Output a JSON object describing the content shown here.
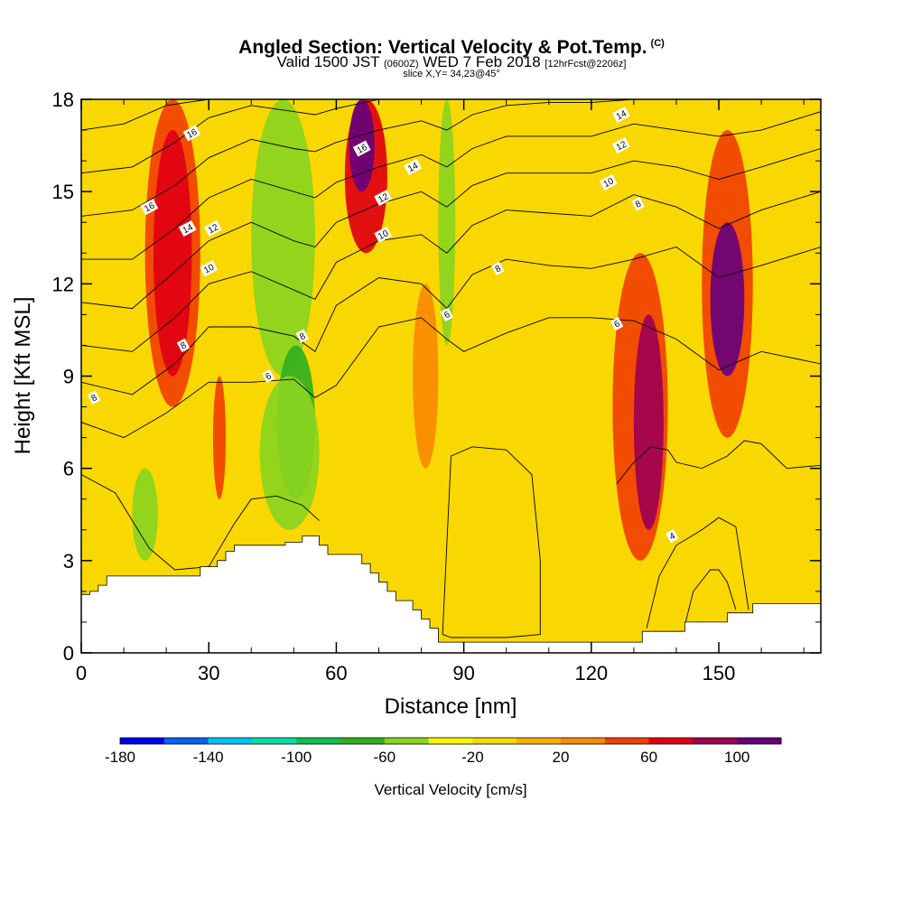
{
  "header": {
    "title": "Angled Section: Vertical Velocity & Pot.Temp.",
    "title_tag": "(C)",
    "valid_prefix": "Valid 1500 JST",
    "valid_z": "(0600Z)",
    "valid_day": "WED 7 Feb 2018",
    "valid_fcst": "[12hrFcst@2206z]",
    "slice": "slice X,Y= 34,23@45°"
  },
  "chart_data": {
    "type": "heatmap",
    "xlabel": "Distance [nm]",
    "ylabel": "Height [Kft MSL]",
    "xlim": [
      0,
      174
    ],
    "ylim": [
      0,
      18
    ],
    "x_ticks": [
      0,
      30,
      60,
      90,
      120,
      150
    ],
    "y_ticks": [
      0,
      3,
      6,
      9,
      12,
      15,
      18
    ],
    "x_tick_labels": [
      "0",
      "30",
      "60",
      "90",
      "120",
      "150"
    ],
    "y_tick_labels": [
      "0",
      "3",
      "6",
      "9",
      "12",
      "15",
      "18"
    ],
    "colorbar": {
      "label": "Vertical Velocity [cm/s]",
      "min": -180,
      "max": 120,
      "step": 20,
      "tick_values": [
        -180,
        -140,
        -100,
        -60,
        -20,
        20,
        60,
        100
      ],
      "tick_labels": [
        "-180",
        "-140",
        "-100",
        "-60",
        "-20",
        "20",
        "60",
        "100"
      ],
      "colors": [
        "#0000ee",
        "#0064f5",
        "#00c4f5",
        "#00e0a8",
        "#10c050",
        "#30b020",
        "#8ad420",
        "#f8f800",
        "#f8d800",
        "#f8b000",
        "#f88a00",
        "#f04000",
        "#e00010",
        "#a00050",
        "#68007a"
      ]
    },
    "terrain_profile": {
      "x": [
        0,
        2,
        2,
        4,
        4,
        6,
        6,
        10,
        10,
        28,
        28,
        32,
        32,
        34,
        34,
        36,
        36,
        48,
        48,
        52,
        52,
        56,
        56,
        58,
        58,
        66,
        66,
        68,
        68,
        70,
        70,
        72,
        72,
        74,
        74,
        78,
        78,
        80,
        80,
        82,
        82,
        84,
        84,
        90,
        90,
        132,
        132,
        142,
        142,
        152,
        152,
        158,
        158,
        174
      ],
      "y": [
        1.9,
        1.9,
        2.0,
        2.0,
        2.2,
        2.2,
        2.5,
        2.5,
        2.5,
        2.5,
        2.8,
        2.8,
        3.0,
        3.0,
        3.3,
        3.3,
        3.5,
        3.5,
        3.6,
        3.6,
        3.8,
        3.8,
        3.5,
        3.5,
        3.2,
        3.2,
        2.9,
        2.9,
        2.6,
        2.6,
        2.3,
        2.3,
        2.0,
        2.0,
        1.7,
        1.7,
        1.4,
        1.4,
        1.1,
        1.1,
        0.8,
        0.8,
        0.35,
        0.35,
        0.35,
        0.35,
        0.7,
        0.7,
        1.0,
        1.0,
        1.3,
        1.3,
        1.6,
        1.6
      ]
    },
    "velocity_cells": [
      {
        "x": [
          15,
          28
        ],
        "y": [
          8,
          18
        ],
        "v": 45
      },
      {
        "x": [
          17,
          26
        ],
        "y": [
          9,
          17
        ],
        "v": 65
      },
      {
        "x": [
          31,
          34
        ],
        "y": [
          5,
          9
        ],
        "v": 55
      },
      {
        "x": [
          40,
          55
        ],
        "y": [
          9,
          18
        ],
        "v": -55
      },
      {
        "x": [
          46,
          55
        ],
        "y": [
          5,
          10
        ],
        "v": -65
      },
      {
        "x": [
          42,
          56
        ],
        "y": [
          4,
          9
        ],
        "v": -45
      },
      {
        "x": [
          12,
          18
        ],
        "y": [
          3,
          6
        ],
        "v": -45
      },
      {
        "x": [
          62,
          72
        ],
        "y": [
          13,
          18
        ],
        "v": 70
      },
      {
        "x": [
          63,
          69
        ],
        "y": [
          15,
          18
        ],
        "v": 100
      },
      {
        "x": [
          78,
          84
        ],
        "y": [
          6,
          12
        ],
        "v": 25
      },
      {
        "x": [
          84,
          88
        ],
        "y": [
          10,
          18
        ],
        "v": -45
      },
      {
        "x": [
          125,
          138
        ],
        "y": [
          3,
          13
        ],
        "v": 55
      },
      {
        "x": [
          130,
          137
        ],
        "y": [
          4,
          11
        ],
        "v": 85
      },
      {
        "x": [
          146,
          158
        ],
        "y": [
          7,
          17
        ],
        "v": 50
      },
      {
        "x": [
          148,
          156
        ],
        "y": [
          9,
          14
        ],
        "v": 100
      }
    ],
    "contour_labels": [
      {
        "text": "16",
        "x": 26,
        "y": 16.9
      },
      {
        "text": "16",
        "x": 16,
        "y": 14.5
      },
      {
        "text": "14",
        "x": 25,
        "y": 13.8
      },
      {
        "text": "12",
        "x": 31,
        "y": 13.8
      },
      {
        "text": "10",
        "x": 30,
        "y": 12.5
      },
      {
        "text": "8",
        "x": 24,
        "y": 10.0
      },
      {
        "text": "8",
        "x": 52,
        "y": 10.3
      },
      {
        "text": "8",
        "x": 3,
        "y": 8.3
      },
      {
        "text": "6",
        "x": 44,
        "y": 9.0
      },
      {
        "text": "16",
        "x": 66,
        "y": 16.4
      },
      {
        "text": "14",
        "x": 78,
        "y": 15.8
      },
      {
        "text": "12",
        "x": 71,
        "y": 14.8
      },
      {
        "text": "10",
        "x": 71,
        "y": 13.6
      },
      {
        "text": "8",
        "x": 98,
        "y": 12.5
      },
      {
        "text": "6",
        "x": 86,
        "y": 11.0
      },
      {
        "text": "14",
        "x": 127,
        "y": 17.5
      },
      {
        "text": "12",
        "x": 127,
        "y": 16.5
      },
      {
        "text": "10",
        "x": 124,
        "y": 15.3
      },
      {
        "text": "8",
        "x": 131,
        "y": 14.6
      },
      {
        "text": "6",
        "x": 126,
        "y": 10.7
      },
      {
        "text": "4",
        "x": 139,
        "y": 3.8
      }
    ],
    "theta_contours": [
      {
        "x": [
          0,
          10,
          20,
          30,
          40,
          50,
          55,
          60,
          70,
          80,
          86,
          90,
          100,
          110,
          120,
          130,
          140,
          150,
          160,
          174
        ],
        "y": [
          7.5,
          7.0,
          7.8,
          8.8,
          8.8,
          8.9,
          8.3,
          8.7,
          10.6,
          10.9,
          10.2,
          9.8,
          10.4,
          10.9,
          10.9,
          10.8,
          10.2,
          9.2,
          9.8,
          9.4
        ]
      },
      {
        "x": [
          0,
          12,
          22,
          30,
          40,
          50,
          55,
          60,
          70,
          80,
          86,
          92,
          100,
          110,
          120,
          130,
          140,
          150,
          160,
          174
        ],
        "y": [
          8.8,
          8.4,
          9.4,
          10.6,
          10.6,
          10.3,
          9.8,
          11.3,
          12.2,
          12.0,
          11.2,
          12.3,
          12.8,
          12.6,
          12.5,
          12.8,
          13.2,
          12.2,
          12.6,
          13.2
        ]
      },
      {
        "x": [
          0,
          12,
          22,
          30,
          40,
          50,
          55,
          60,
          70,
          80,
          86,
          92,
          100,
          110,
          120,
          130,
          140,
          150,
          160,
          174
        ],
        "y": [
          10.0,
          9.8,
          10.9,
          12.0,
          12.4,
          11.8,
          11.5,
          12.7,
          13.4,
          13.6,
          13.0,
          13.9,
          14.4,
          14.3,
          14.2,
          14.9,
          14.5,
          13.8,
          14.4,
          15.0
        ]
      },
      {
        "x": [
          0,
          12,
          22,
          30,
          40,
          50,
          55,
          60,
          70,
          80,
          86,
          92,
          100,
          110,
          120,
          130,
          140,
          150,
          160,
          174
        ],
        "y": [
          11.4,
          11.2,
          12.4,
          13.4,
          14.0,
          13.4,
          13.2,
          14.0,
          14.6,
          15.0,
          14.5,
          15.2,
          15.6,
          15.6,
          15.6,
          16.0,
          15.8,
          15.4,
          15.8,
          16.4
        ]
      },
      {
        "x": [
          0,
          12,
          22,
          30,
          40,
          50,
          55,
          60,
          70,
          80,
          86,
          92,
          100,
          110,
          120,
          130,
          140,
          150,
          160,
          174
        ],
        "y": [
          12.8,
          12.8,
          13.8,
          14.8,
          15.4,
          15.0,
          14.8,
          15.3,
          15.8,
          16.2,
          15.8,
          16.4,
          16.8,
          16.8,
          16.8,
          17.2,
          17.0,
          16.8,
          17.0,
          17.6
        ]
      },
      {
        "x": [
          0,
          12,
          22,
          30,
          40,
          50,
          55,
          60,
          70,
          80,
          86,
          92,
          100,
          110,
          120,
          130,
          140,
          150,
          160,
          174
        ],
        "y": [
          14.2,
          14.4,
          15.2,
          16.1,
          16.7,
          16.4,
          16.3,
          16.6,
          17.0,
          17.3,
          17.0,
          17.5,
          17.8,
          17.9,
          17.9,
          18.0,
          18.0,
          18.0,
          18.0,
          18.0
        ]
      },
      {
        "x": [
          0,
          12,
          22,
          30,
          40,
          50,
          55,
          60,
          70,
          80,
          90,
          100,
          120,
          140,
          160,
          174
        ],
        "y": [
          15.6,
          15.8,
          16.6,
          17.4,
          17.8,
          17.6,
          17.5,
          17.7,
          18.0,
          18.0,
          18.0,
          18.0,
          18.0,
          18.0,
          18.0,
          18.0
        ]
      },
      {
        "x": [
          0,
          10,
          20,
          30,
          40,
          50,
          55,
          60,
          70,
          80,
          90,
          100,
          120,
          140,
          160,
          174
        ],
        "y": [
          17.0,
          17.2,
          17.8,
          18.0,
          18.0,
          18.0,
          18.0,
          18.0,
          18.0,
          18.0,
          18.0,
          18.0,
          18.0,
          18.0,
          18.0,
          18.0
        ]
      },
      {
        "x": [
          85,
          87,
          92,
          100,
          106,
          108,
          108,
          100,
          92,
          87,
          85
        ],
        "y": [
          0.6,
          6.4,
          6.7,
          6.6,
          5.8,
          3.0,
          0.6,
          0.5,
          0.5,
          0.5,
          0.6
        ]
      },
      {
        "x": [
          0,
          8,
          16,
          22,
          30,
          36,
          40,
          46,
          52,
          56
        ],
        "y": [
          5.8,
          5.2,
          3.4,
          2.7,
          2.8,
          4.2,
          5.0,
          5.1,
          4.8,
          4.3
        ]
      },
      {
        "x": [
          126,
          130,
          134,
          138,
          140,
          146,
          152,
          156,
          160,
          166,
          174
        ],
        "y": [
          5.5,
          6.2,
          6.7,
          6.6,
          6.2,
          6.0,
          6.4,
          6.9,
          6.8,
          6.0,
          6.1
        ]
      },
      {
        "x": [
          133,
          136,
          140,
          146,
          150,
          154,
          157
        ],
        "y": [
          0.8,
          2.5,
          3.5,
          4.0,
          4.4,
          4.1,
          1.4
        ]
      },
      {
        "x": [
          142,
          144,
          148,
          150,
          152,
          154
        ],
        "y": [
          0.9,
          2.0,
          2.7,
          2.7,
          2.3,
          1.4
        ]
      }
    ]
  }
}
